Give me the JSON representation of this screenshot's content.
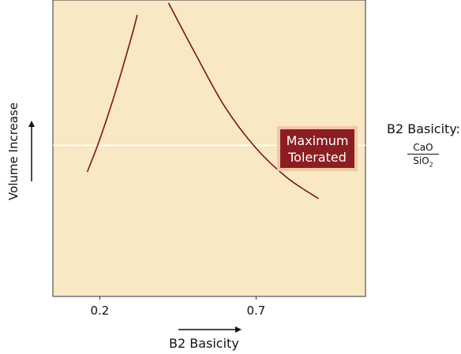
{
  "chart_data": {
    "type": "line",
    "title": "",
    "xlabel": "B2 Basicity",
    "ylabel": "Volume Increase",
    "xlim": [
      0.05,
      1.05
    ],
    "ylim": [
      0,
      1
    ],
    "xticks": [
      0.2,
      0.7
    ],
    "xtick_labels": [
      "0.2",
      "0.7"
    ],
    "grid": false,
    "series": [
      {
        "x": [
          0.16,
          0.2,
          0.25,
          0.3,
          0.32
        ],
        "y": [
          0.42,
          0.53,
          0.69,
          0.87,
          0.95
        ]
      },
      {
        "x": [
          0.42,
          0.5,
          0.6,
          0.7,
          0.8,
          0.9
        ],
        "y": [
          0.99,
          0.83,
          0.64,
          0.5,
          0.4,
          0.33
        ]
      }
    ],
    "reference_line": {
      "y": 0.51
    },
    "annotation": {
      "line1": "Maximum",
      "line2": "Tolerated"
    },
    "side_label": {
      "title": "B2 Basicity:",
      "numerator": "CaO",
      "denominator": "SiO",
      "denominator_subscript": "2"
    },
    "colors": {
      "plot_background": "#f8e8c3",
      "curve": "#7a1519",
      "reference": "#ffffff",
      "annotation_bg": "#8b1e22"
    }
  }
}
